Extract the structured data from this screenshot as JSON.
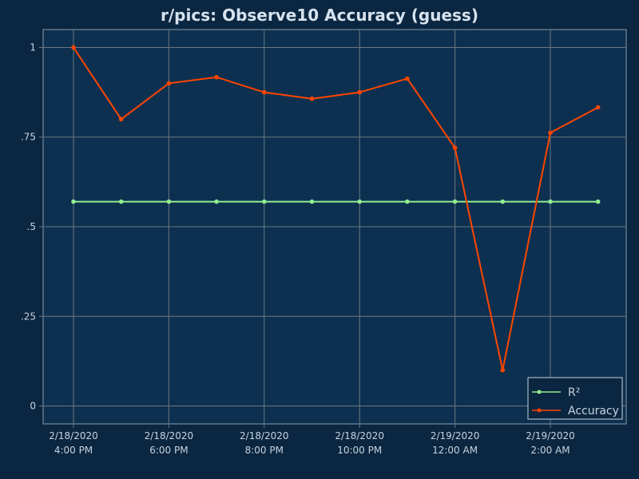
{
  "chart_data": {
    "type": "line",
    "title": "r/pics: Observe10 Accuracy (guess)",
    "x": [
      "2020-02-18 16:00",
      "2020-02-18 17:00",
      "2020-02-18 18:00",
      "2020-02-18 19:00",
      "2020-02-18 20:00",
      "2020-02-18 21:00",
      "2020-02-18 22:00",
      "2020-02-18 23:00",
      "2020-02-19 00:00",
      "2020-02-19 01:00",
      "2020-02-19 02:00",
      "2020-02-19 03:00"
    ],
    "x_ticks": [
      {
        "date": "2/18/2020",
        "time": "4:00 PM"
      },
      {
        "date": "2/18/2020",
        "time": "6:00 PM"
      },
      {
        "date": "2/18/2020",
        "time": "8:00 PM"
      },
      {
        "date": "2/18/2020",
        "time": "10:00 PM"
      },
      {
        "date": "2/19/2020",
        "time": "12:00 AM"
      },
      {
        "date": "2/19/2020",
        "time": "2:00 AM"
      }
    ],
    "y_ticks": [
      "0",
      ".25",
      ".5",
      ".75",
      "1"
    ],
    "ylim": [
      -0.05,
      1.05
    ],
    "grid": true,
    "legend_position": "bottom-right",
    "series": [
      {
        "name": "R²",
        "color": "#90ee90",
        "values": [
          0.57,
          0.57,
          0.57,
          0.57,
          0.57,
          0.57,
          0.57,
          0.57,
          0.57,
          0.57,
          0.57,
          0.57
        ]
      },
      {
        "name": "Accuracy",
        "color": "#ff4500",
        "values": [
          1.0,
          0.8,
          0.9,
          0.917,
          0.875,
          0.857,
          0.875,
          0.913,
          0.72,
          0.1,
          0.762,
          0.833
        ]
      }
    ]
  },
  "colors": {
    "page_background": "#0b2640",
    "plot_background": "#0d3050",
    "grid": "#6b7780",
    "axis_text": "#c6d3e0",
    "title_text": "#d6e2ee"
  }
}
